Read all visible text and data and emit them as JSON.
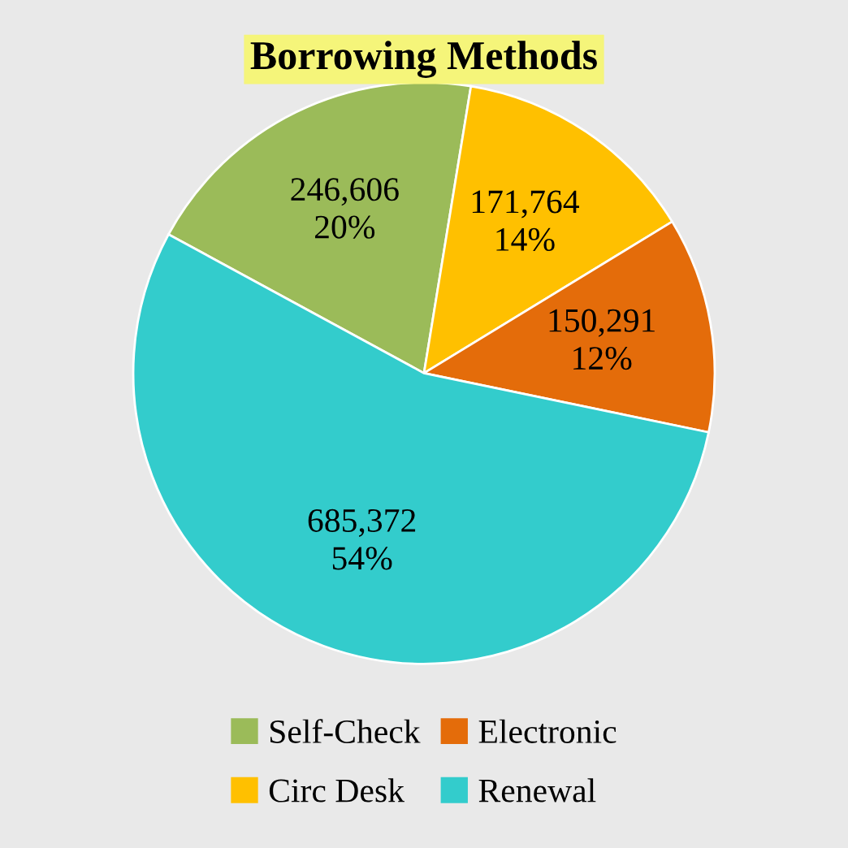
{
  "chart_data": {
    "type": "pie",
    "title": "Borrowing Methods",
    "categories": [
      "Self-Check",
      "Circ Desk",
      "Electronic",
      "Renewal"
    ],
    "values": [
      246606,
      171764,
      150291,
      685372
    ],
    "colors": [
      "#9bbb59",
      "#ffc000",
      "#e46c0a",
      "#33cccc"
    ],
    "value_labels": [
      "246,606\n20%",
      "171,764\n14%",
      "150,291\n12%",
      "685,372\n54%"
    ],
    "legend": "bottom"
  }
}
